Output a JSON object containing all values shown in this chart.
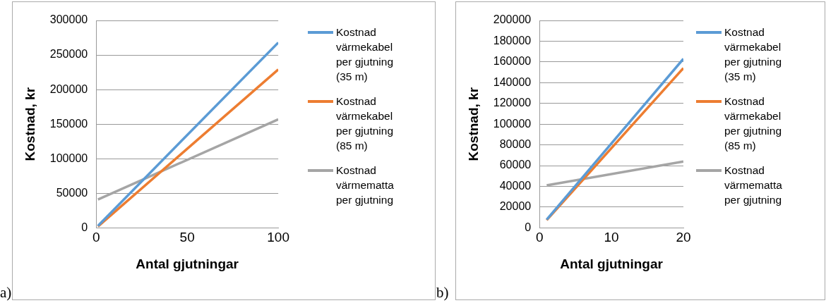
{
  "chart_data": [
    {
      "type": "line",
      "xlabel": "Antal gjutningar",
      "ylabel": "Kostnad, kr",
      "annotations": [
        "a)"
      ],
      "x": [
        1,
        100
      ],
      "xlim": [
        0,
        100
      ],
      "xticks": [
        0,
        50,
        100
      ],
      "ylim": [
        0,
        300000
      ],
      "yticks": [
        0,
        50000,
        100000,
        150000,
        200000,
        250000,
        300000
      ],
      "grid": "y",
      "legend": "right",
      "marker": "none",
      "series": [
        {
          "name": "Kostnad värmekabel per gjutning (35 m)",
          "color": "#5b9bd5",
          "values": [
            3000,
            268000
          ]
        },
        {
          "name": "Kostnad värmekabel per gjutning (85 m)",
          "color": "#ed7d31",
          "values": [
            2000,
            229000
          ]
        },
        {
          "name": "Kostnad värmematta per gjutning",
          "color": "#a5a5a5",
          "values": [
            41000,
            157000
          ]
        }
      ]
    },
    {
      "type": "line",
      "xlabel": "Antal gjutningar",
      "ylabel": "Kostnad, kr",
      "annotations": [
        "b)"
      ],
      "x": [
        1,
        20
      ],
      "xlim": [
        0,
        20
      ],
      "xticks": [
        0,
        10,
        20
      ],
      "ylim": [
        0,
        200000
      ],
      "yticks": [
        0,
        20000,
        40000,
        60000,
        80000,
        100000,
        120000,
        140000,
        160000,
        180000,
        200000
      ],
      "grid": "y",
      "legend": "right",
      "marker": "none",
      "series": [
        {
          "name": "Kostnad värmekabel per gjutning (35 m)",
          "color": "#5b9bd5",
          "values": [
            8000,
            163000
          ]
        },
        {
          "name": "Kostnad värmekabel per gjutning (85 m)",
          "color": "#ed7d31",
          "values": [
            7500,
            154000
          ]
        },
        {
          "name": "Kostnad värmematta per gjutning",
          "color": "#a5a5a5",
          "values": [
            41000,
            64000
          ]
        }
      ]
    }
  ]
}
